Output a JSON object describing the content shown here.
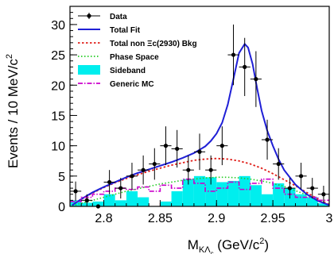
{
  "chart_data": {
    "type": "line",
    "xlabel": "M",
    "xlabel_sub": "KΛ",
    "xlabel_subsub": "c",
    "xlabel_unit": " (GeV/c",
    "xlabel_sup": "2",
    "xlabel_close": ")",
    "ylabel": "Events / 10 MeV/c",
    "ylabel_sup": "2",
    "xlim": [
      2.77,
      3.0
    ],
    "ylim": [
      0,
      33
    ],
    "xticks": [
      2.8,
      2.85,
      2.9,
      2.95,
      3.0
    ],
    "xtick_labels": [
      "2.8",
      "2.85",
      "2.9",
      "2.95",
      "3"
    ],
    "yticks": [
      0,
      5,
      10,
      15,
      20,
      25,
      30
    ],
    "ytick_labels": [
      "0",
      "5",
      "10",
      "15",
      "20",
      "25",
      "30"
    ],
    "legend_position": "top-left",
    "legend": [
      {
        "key": "data",
        "label": "Data"
      },
      {
        "key": "fit",
        "label": "Total Fit"
      },
      {
        "key": "bkg",
        "label": "Total non Ξc(2930) Bkg"
      },
      {
        "key": "ps",
        "label": "Phase Space"
      },
      {
        "key": "sideband",
        "label": "Sideband"
      },
      {
        "key": "mc",
        "label": "Generic MC"
      }
    ],
    "colors": {
      "data": "#000000",
      "fit": "#1f1fd6",
      "bkg": "#e0201b",
      "ps": "#22cc22",
      "sideband": "#00eeee",
      "mc": "#cc00cc"
    },
    "data_points": {
      "x": [
        2.775,
        2.785,
        2.795,
        2.805,
        2.815,
        2.825,
        2.835,
        2.845,
        2.855,
        2.865,
        2.875,
        2.885,
        2.895,
        2.905,
        2.915,
        2.925,
        2.935,
        2.945,
        2.955,
        2.965,
        2.975,
        2.985,
        2.995
      ],
      "y": [
        2.5,
        1,
        0,
        4,
        3,
        5,
        6,
        7,
        10,
        9.5,
        6,
        9,
        6,
        10,
        25,
        23,
        21,
        11,
        7,
        3,
        5,
        3,
        2
      ],
      "err": [
        1.6,
        1.0,
        0.0,
        2.0,
        1.7,
        2.2,
        2.4,
        2.6,
        3.2,
        3.1,
        2.4,
        3.0,
        2.4,
        3.2,
        5.0,
        4.8,
        4.6,
        3.3,
        2.6,
        1.7,
        2.2,
        1.7,
        1.4
      ]
    },
    "sideband": {
      "x": [
        2.775,
        2.785,
        2.795,
        2.805,
        2.815,
        2.825,
        2.835,
        2.845,
        2.855,
        2.865,
        2.875,
        2.885,
        2.895,
        2.905,
        2.915,
        2.925,
        2.935,
        2.945,
        2.955,
        2.965,
        2.975,
        2.985,
        2.995
      ],
      "y": [
        1.0,
        0.6,
        0.8,
        2.0,
        1.0,
        2.5,
        1.5,
        0,
        0.8,
        2.5,
        4.5,
        5.0,
        4.8,
        4.0,
        4.2,
        5.0,
        3.5,
        2.0,
        3.8,
        3.0,
        2.0,
        1.5,
        0.5
      ]
    },
    "generic_mc": {
      "x": [
        2.775,
        2.785,
        2.795,
        2.805,
        2.815,
        2.825,
        2.835,
        2.845,
        2.855,
        2.865,
        2.875,
        2.885,
        2.895,
        2.905,
        2.915,
        2.925,
        2.935,
        2.945,
        2.955,
        2.965,
        2.975,
        2.985,
        2.995
      ],
      "y": [
        0.8,
        1.5,
        2.0,
        2.5,
        3.0,
        2.8,
        3.2,
        2.5,
        3.5,
        3.0,
        4.5,
        3.8,
        2.5,
        3.0,
        4.0,
        2.8,
        3.8,
        4.5,
        3.0,
        2.0,
        1.5,
        1.5,
        1.0
      ]
    },
    "total_fit": {
      "x": [
        2.772,
        2.78,
        2.79,
        2.8,
        2.81,
        2.82,
        2.83,
        2.84,
        2.85,
        2.86,
        2.87,
        2.88,
        2.89,
        2.895,
        2.9,
        2.905,
        2.91,
        2.915,
        2.92,
        2.925,
        2.928,
        2.932,
        2.936,
        2.94,
        2.945,
        2.95,
        2.955,
        2.96,
        2.97,
        2.98,
        2.99,
        3.0
      ],
      "y": [
        0.2,
        1.2,
        2.3,
        3.2,
        4.0,
        4.8,
        5.5,
        6.1,
        6.7,
        7.3,
        8.0,
        8.8,
        9.9,
        10.8,
        12.0,
        13.8,
        16.8,
        21.0,
        25.3,
        26.8,
        26.2,
        23.5,
        19.5,
        15.8,
        12.5,
        10.0,
        7.8,
        6.0,
        3.6,
        2.0,
        0.9,
        0.2
      ]
    },
    "total_bkg": {
      "x": [
        2.772,
        2.78,
        2.79,
        2.8,
        2.81,
        2.82,
        2.83,
        2.84,
        2.85,
        2.86,
        2.87,
        2.88,
        2.89,
        2.9,
        2.91,
        2.92,
        2.93,
        2.94,
        2.95,
        2.96,
        2.97,
        2.98,
        2.99,
        3.0
      ],
      "y": [
        0.2,
        1.2,
        2.2,
        3.1,
        3.9,
        4.6,
        5.2,
        5.8,
        6.3,
        6.8,
        7.2,
        7.6,
        7.8,
        7.9,
        7.8,
        7.5,
        7.0,
        6.3,
        5.4,
        4.4,
        3.4,
        2.3,
        1.2,
        0.3
      ]
    },
    "phase_space": {
      "x": [
        2.772,
        2.78,
        2.79,
        2.8,
        2.81,
        2.82,
        2.83,
        2.84,
        2.85,
        2.86,
        2.87,
        2.88,
        2.89,
        2.9,
        2.91,
        2.92,
        2.93,
        2.94,
        2.95,
        2.96,
        2.97,
        2.98,
        2.99,
        3.0
      ],
      "y": [
        0.1,
        0.5,
        1.0,
        1.5,
        2.0,
        2.5,
        2.9,
        3.3,
        3.7,
        4.0,
        4.3,
        4.5,
        4.7,
        4.8,
        4.8,
        4.7,
        4.5,
        4.2,
        3.8,
        3.3,
        2.6,
        1.9,
        1.0,
        0.2
      ]
    }
  }
}
